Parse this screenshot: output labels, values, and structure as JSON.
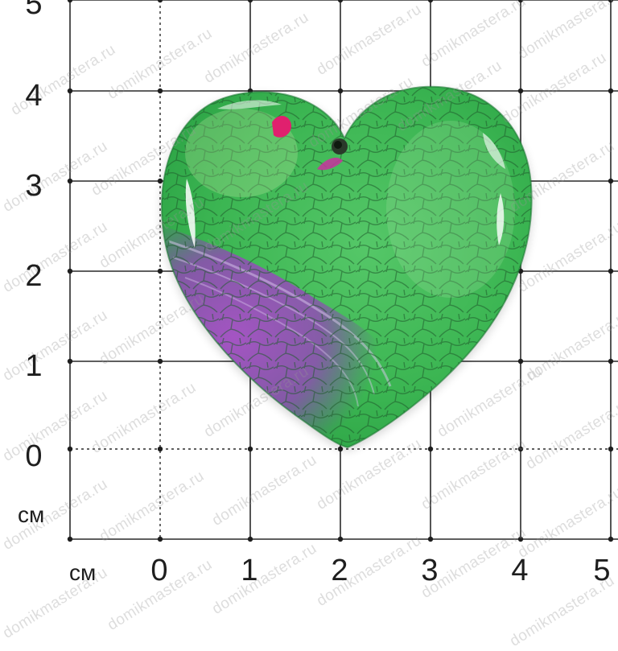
{
  "ruler": {
    "y_labels": [
      "0",
      "1",
      "2",
      "3",
      "4",
      "5"
    ],
    "x_labels": [
      "0",
      "1",
      "2",
      "3",
      "4",
      "5"
    ],
    "y_unit": "см",
    "x_unit": "см"
  },
  "watermark": "domikmastera.ru",
  "subject": {
    "shape": "heart",
    "material": "agate",
    "colors": {
      "primary": "#34b84e",
      "secondary": "#a23bc4",
      "veins": "#1f5a2c",
      "accent": "#e0206e"
    }
  }
}
